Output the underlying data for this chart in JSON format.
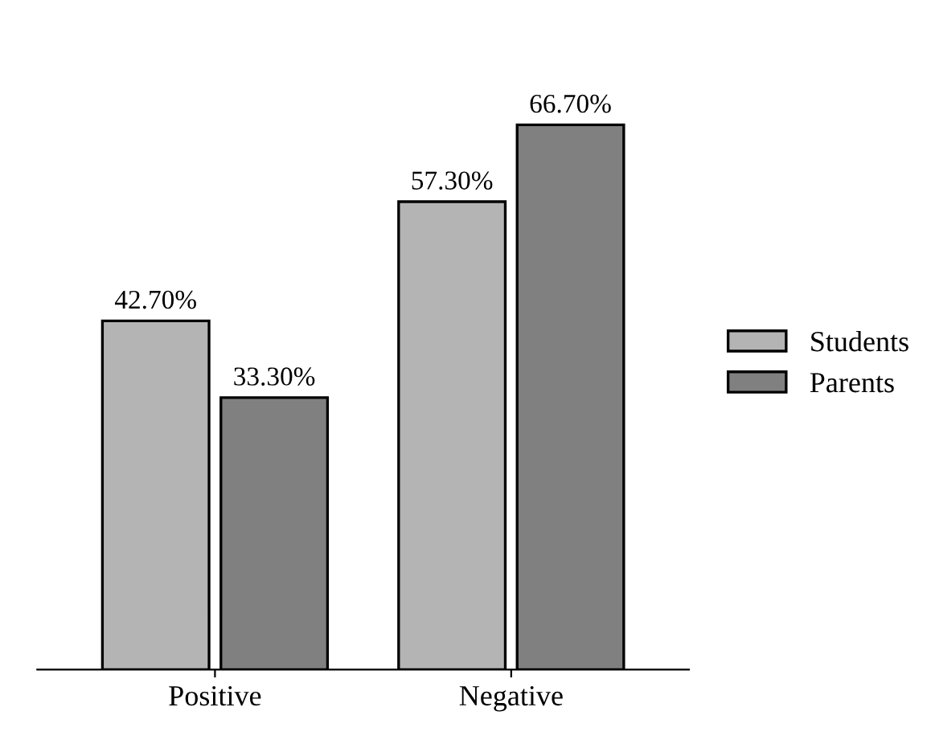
{
  "chart_data": {
    "type": "bar",
    "categories": [
      "Positive",
      "Negative"
    ],
    "series": [
      {
        "name": "Students",
        "color": "#b4b4b4",
        "values": [
          42.7,
          57.3
        ],
        "value_labels": [
          "42.70%",
          "57.30%"
        ]
      },
      {
        "name": "Parents",
        "color": "#808080",
        "values": [
          33.3,
          66.7
        ],
        "value_labels": [
          "33.30%",
          "66.70%"
        ]
      }
    ],
    "legend": "right",
    "grid": false
  }
}
